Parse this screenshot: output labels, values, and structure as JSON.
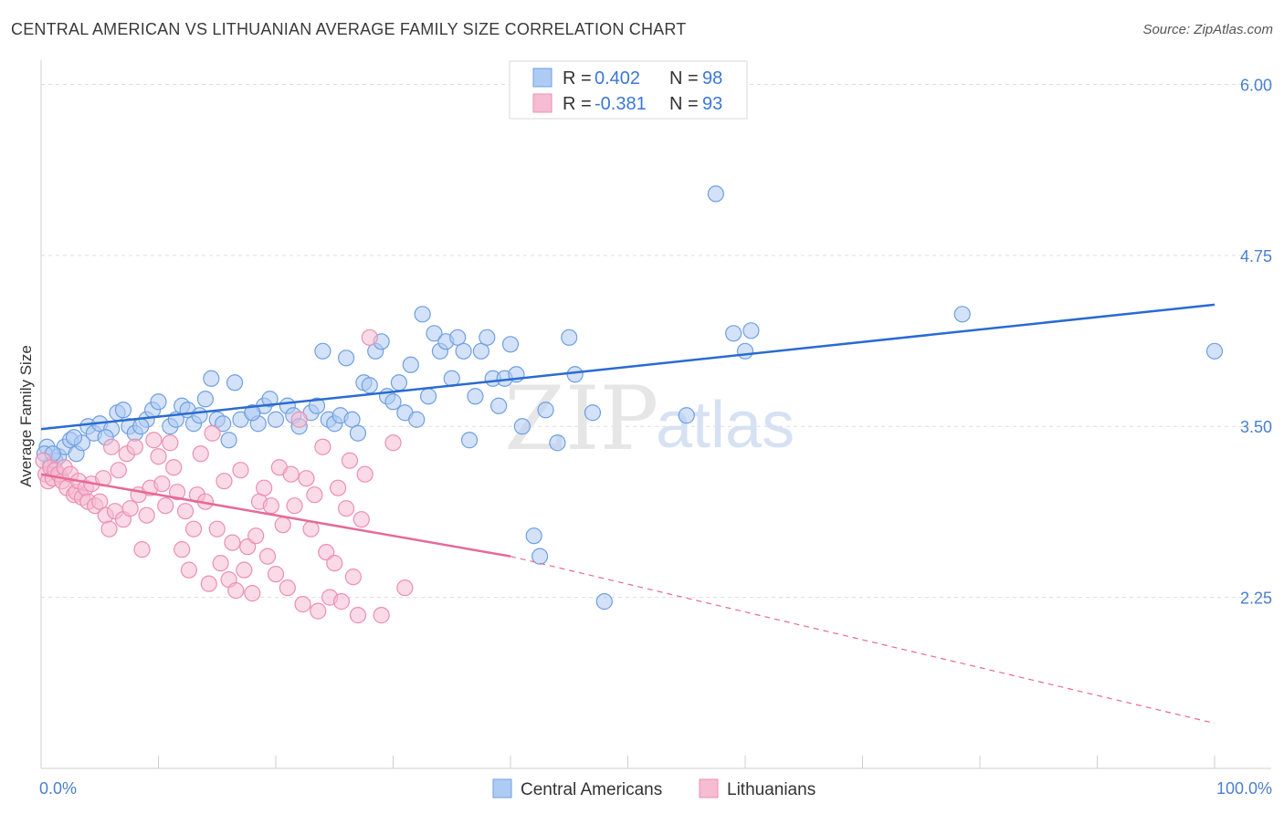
{
  "header": {
    "title": "CENTRAL AMERICAN VS LITHUANIAN AVERAGE FAMILY SIZE CORRELATION CHART",
    "source": "Source: ZipAtlas.com"
  },
  "legend_top": {
    "rows": [
      {
        "r_label": "R =",
        "r_value": "0.402",
        "n_label": "N =",
        "n_value": "98",
        "color": "#aecbf3",
        "stroke": "#6f9fe0"
      },
      {
        "r_label": "R =",
        "r_value": "-0.381",
        "n_label": "N =",
        "n_value": "93",
        "color": "#f6bcd1",
        "stroke": "#ec8fb1"
      }
    ]
  },
  "watermark": {
    "zip": "ZIP",
    "atlas": "atlas"
  },
  "chart_data": {
    "type": "scatter",
    "title": "CENTRAL AMERICAN VS LITHUANIAN AVERAGE FAMILY SIZE CORRELATION CHART",
    "xlabel": "",
    "ylabel": "Average Family Size",
    "xlim": [
      0,
      100
    ],
    "ylim": [
      1.0,
      6.15
    ],
    "x_tick_labels": [
      "0.0%",
      "100.0%"
    ],
    "y_ticks": [
      2.25,
      3.5,
      4.75,
      6.0
    ],
    "y_tick_labels": [
      "2.25",
      "3.50",
      "4.75",
      "6.00"
    ],
    "grid": "horizontal dashed",
    "legend_position": "top-center and bottom",
    "series": [
      {
        "name": "Central Americans",
        "color": "#aecbf3",
        "stroke": "#6f9fe0",
        "trend": {
          "x": [
            0,
            100
          ],
          "y": [
            3.48,
            4.39
          ],
          "color": "#2a6bd0"
        },
        "points": [
          [
            0.5,
            3.35
          ],
          [
            0.8,
            3.22
          ],
          [
            1.2,
            3.25
          ],
          [
            1.5,
            3.28
          ],
          [
            2,
            3.35
          ],
          [
            2.5,
            3.4
          ],
          [
            3,
            3.3
          ],
          [
            3.5,
            3.38
          ],
          [
            4,
            3.5
          ],
          [
            4.5,
            3.45
          ],
          [
            5,
            3.52
          ],
          [
            6,
            3.48
          ],
          [
            6.5,
            3.6
          ],
          [
            7,
            3.62
          ],
          [
            7.5,
            3.5
          ],
          [
            8,
            3.45
          ],
          [
            9,
            3.55
          ],
          [
            9.5,
            3.62
          ],
          [
            10,
            3.68
          ],
          [
            11,
            3.5
          ],
          [
            11.5,
            3.55
          ],
          [
            12,
            3.65
          ],
          [
            12.5,
            3.62
          ],
          [
            13,
            3.52
          ],
          [
            14,
            3.7
          ],
          [
            14.5,
            3.85
          ],
          [
            15,
            3.55
          ],
          [
            15.5,
            3.52
          ],
          [
            16,
            3.4
          ],
          [
            16.5,
            3.82
          ],
          [
            17,
            3.55
          ],
          [
            18,
            3.6
          ],
          [
            18.5,
            3.52
          ],
          [
            19,
            3.65
          ],
          [
            19.5,
            3.7
          ],
          [
            20,
            3.55
          ],
          [
            21,
            3.65
          ],
          [
            21.5,
            3.58
          ],
          [
            22,
            3.5
          ],
          [
            23,
            3.6
          ],
          [
            23.5,
            3.65
          ],
          [
            24,
            4.05
          ],
          [
            24.5,
            3.55
          ],
          [
            25,
            3.52
          ],
          [
            25.5,
            3.58
          ],
          [
            26,
            4.0
          ],
          [
            26.5,
            3.55
          ],
          [
            27,
            3.45
          ],
          [
            27.5,
            3.82
          ],
          [
            28,
            3.8
          ],
          [
            28.5,
            4.05
          ],
          [
            29,
            4.12
          ],
          [
            29.5,
            3.72
          ],
          [
            30,
            3.68
          ],
          [
            30.5,
            3.82
          ],
          [
            31,
            3.6
          ],
          [
            31.5,
            3.95
          ],
          [
            32,
            3.55
          ],
          [
            32.5,
            4.32
          ],
          [
            33,
            3.72
          ],
          [
            33.5,
            4.18
          ],
          [
            34,
            4.05
          ],
          [
            34.5,
            4.12
          ],
          [
            35,
            3.85
          ],
          [
            35.5,
            4.15
          ],
          [
            36,
            4.05
          ],
          [
            36.5,
            3.4
          ],
          [
            37,
            3.72
          ],
          [
            37.5,
            4.05
          ],
          [
            38,
            4.15
          ],
          [
            38.5,
            3.85
          ],
          [
            39,
            3.65
          ],
          [
            39.5,
            3.85
          ],
          [
            40,
            4.1
          ],
          [
            40.5,
            3.88
          ],
          [
            41,
            3.5
          ],
          [
            42,
            2.7
          ],
          [
            42.5,
            2.55
          ],
          [
            43,
            3.62
          ],
          [
            44,
            3.38
          ],
          [
            45,
            4.15
          ],
          [
            45.5,
            3.88
          ],
          [
            47,
            3.6
          ],
          [
            48,
            2.22
          ],
          [
            55,
            3.58
          ],
          [
            57.5,
            5.2
          ],
          [
            59,
            4.18
          ],
          [
            60,
            4.05
          ],
          [
            60.5,
            4.2
          ],
          [
            78.5,
            4.32
          ],
          [
            100,
            4.05
          ],
          [
            0.3,
            3.3
          ],
          [
            1,
            3.3
          ],
          [
            2.8,
            3.42
          ],
          [
            5.5,
            3.42
          ],
          [
            8.5,
            3.5
          ],
          [
            13.5,
            3.58
          ],
          [
            18,
            3.6
          ]
        ]
      },
      {
        "name": "Lithuanians",
        "color": "#f6bcd1",
        "stroke": "#ec8fb1",
        "trend": {
          "x": [
            0,
            40
          ],
          "y": [
            3.15,
            2.55
          ],
          "dashed_to": {
            "x": 100,
            "y": 1.33
          },
          "color": "#e66a97"
        },
        "points": [
          [
            0.2,
            3.25
          ],
          [
            0.4,
            3.15
          ],
          [
            0.6,
            3.1
          ],
          [
            0.8,
            3.2
          ],
          [
            1,
            3.12
          ],
          [
            1.2,
            3.18
          ],
          [
            1.5,
            3.15
          ],
          [
            1.8,
            3.1
          ],
          [
            2,
            3.2
          ],
          [
            2.2,
            3.05
          ],
          [
            2.5,
            3.15
          ],
          [
            2.8,
            3.0
          ],
          [
            3,
            3.02
          ],
          [
            3.2,
            3.1
          ],
          [
            3.5,
            2.98
          ],
          [
            3.8,
            3.05
          ],
          [
            4,
            2.95
          ],
          [
            4.3,
            3.08
          ],
          [
            4.6,
            2.92
          ],
          [
            5,
            2.95
          ],
          [
            5.3,
            3.12
          ],
          [
            5.5,
            2.85
          ],
          [
            5.8,
            2.75
          ],
          [
            6,
            3.35
          ],
          [
            6.3,
            2.88
          ],
          [
            6.6,
            3.18
          ],
          [
            7,
            2.82
          ],
          [
            7.3,
            3.3
          ],
          [
            7.6,
            2.9
          ],
          [
            8,
            3.35
          ],
          [
            8.3,
            3.0
          ],
          [
            8.6,
            2.6
          ],
          [
            9,
            2.85
          ],
          [
            9.3,
            3.05
          ],
          [
            9.6,
            3.4
          ],
          [
            10,
            3.28
          ],
          [
            10.3,
            3.08
          ],
          [
            10.6,
            2.92
          ],
          [
            11,
            3.38
          ],
          [
            11.3,
            3.2
          ],
          [
            11.6,
            3.02
          ],
          [
            12,
            2.6
          ],
          [
            12.3,
            2.88
          ],
          [
            12.6,
            2.45
          ],
          [
            13,
            2.75
          ],
          [
            13.3,
            3.0
          ],
          [
            13.6,
            3.3
          ],
          [
            14,
            2.95
          ],
          [
            14.3,
            2.35
          ],
          [
            14.6,
            3.45
          ],
          [
            15,
            2.75
          ],
          [
            15.3,
            2.5
          ],
          [
            15.6,
            3.1
          ],
          [
            16,
            2.38
          ],
          [
            16.3,
            2.65
          ],
          [
            16.6,
            2.3
          ],
          [
            17,
            3.18
          ],
          [
            17.3,
            2.45
          ],
          [
            17.6,
            2.62
          ],
          [
            18,
            2.28
          ],
          [
            18.3,
            2.7
          ],
          [
            18.6,
            2.95
          ],
          [
            19,
            3.05
          ],
          [
            19.3,
            2.55
          ],
          [
            19.6,
            2.92
          ],
          [
            20,
            2.42
          ],
          [
            20.3,
            3.2
          ],
          [
            20.6,
            2.78
          ],
          [
            21,
            2.32
          ],
          [
            21.3,
            3.15
          ],
          [
            21.6,
            2.92
          ],
          [
            22,
            3.55
          ],
          [
            22.3,
            2.2
          ],
          [
            22.6,
            3.12
          ],
          [
            23,
            2.75
          ],
          [
            23.3,
            3.0
          ],
          [
            23.6,
            2.15
          ],
          [
            24,
            3.35
          ],
          [
            24.3,
            2.58
          ],
          [
            24.6,
            2.25
          ],
          [
            25,
            2.5
          ],
          [
            25.3,
            3.05
          ],
          [
            25.6,
            2.22
          ],
          [
            26,
            2.9
          ],
          [
            26.3,
            3.25
          ],
          [
            26.6,
            2.4
          ],
          [
            27,
            2.12
          ],
          [
            27.3,
            2.82
          ],
          [
            27.6,
            3.15
          ],
          [
            28,
            4.15
          ],
          [
            29,
            2.12
          ],
          [
            30,
            3.38
          ],
          [
            31,
            2.32
          ]
        ]
      }
    ]
  },
  "bottom_legend": {
    "items": [
      {
        "label": "Central Americans",
        "color": "#aecbf3",
        "stroke": "#6f9fe0"
      },
      {
        "label": "Lithuanians",
        "color": "#f6bcd1",
        "stroke": "#ec8fb1"
      }
    ]
  }
}
